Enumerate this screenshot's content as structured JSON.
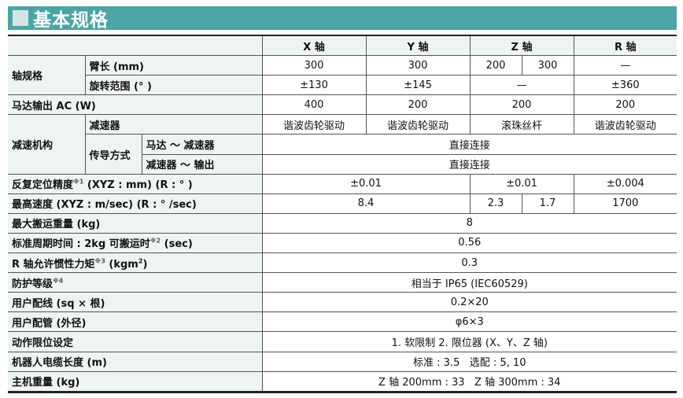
{
  "title": "基本规格",
  "header": {
    "x": "X 轴",
    "y": "Y 轴",
    "z": "Z 轴",
    "r": "R 轴"
  },
  "rows": {
    "axis_spec": "轴规格",
    "arm_length": {
      "label": "臂长 (mm)",
      "x": "300",
      "y": "300",
      "z1": "200",
      "z2": "300",
      "r": "—"
    },
    "rotation": {
      "label": "旋转范围 (° )",
      "x": "±130",
      "y": "±145",
      "z": "—",
      "r": "±360"
    },
    "motor": {
      "label": "马达输出 AC (W)",
      "x": "400",
      "y": "200",
      "z": "200",
      "r": "200"
    },
    "reduction": "减速机构",
    "reducer": {
      "label": "减速器",
      "x": "谐波齿轮驱动",
      "y": "谐波齿轮驱动",
      "z": "滚珠丝杆",
      "r": "谐波齿轮驱动"
    },
    "transmission": "传导方式",
    "motor_reducer": {
      "label": "马达 ～ 减速器",
      "value": "直接连接"
    },
    "reducer_output": {
      "label": "减速器 ～ 输出",
      "value": "直接连接"
    },
    "repeatability": {
      "label": "反复定位精度",
      "note": "※1",
      "label2": " (XYZ : mm) (R : ° )",
      "xy": "±0.01",
      "z": "±0.01",
      "r": "±0.004"
    },
    "max_speed": {
      "label": "最高速度 (XYZ : m/sec) (R : ° /sec)",
      "xy": "8.4",
      "z1": "2.3",
      "z2": "1.7",
      "r": "1700"
    },
    "payload": {
      "label": "最大搬运重量 (kg)",
      "value": "8"
    },
    "cycle_time": {
      "label": "标准周期时间 : 2kg 可搬运时",
      "note": "※2",
      "label2": " (sec)",
      "value": "0.56"
    },
    "inertia": {
      "label": "R 轴允许惯性力矩",
      "note": "※3",
      "label2": " (kgm",
      "sup": "2",
      "label3": ")",
      "value": "0.3"
    },
    "protection": {
      "label": "防护等级",
      "note": "※4",
      "value": "相当于 IP65 (IEC60529)"
    },
    "wiring": {
      "label": "用户配线 (sq × 根)",
      "value": "0.2×20"
    },
    "tubing": {
      "label": "用户配管 (外径)",
      "value": "φ6×3"
    },
    "limit": {
      "label": "动作限位设定",
      "value": "1. 软限制  2. 限位器 (X、Y、Z 轴)"
    },
    "cable": {
      "label": "机器人电缆长度 (m)",
      "value": "标准 : 3.5   选配 : 5, 10"
    },
    "weight": {
      "label": "主机重量 (kg)",
      "value": "Z 轴 200mm : 33   Z 轴 300mm : 34"
    }
  },
  "colors": {
    "title_bar": "#4aa5a6",
    "label_bg": "#eef3f3"
  }
}
